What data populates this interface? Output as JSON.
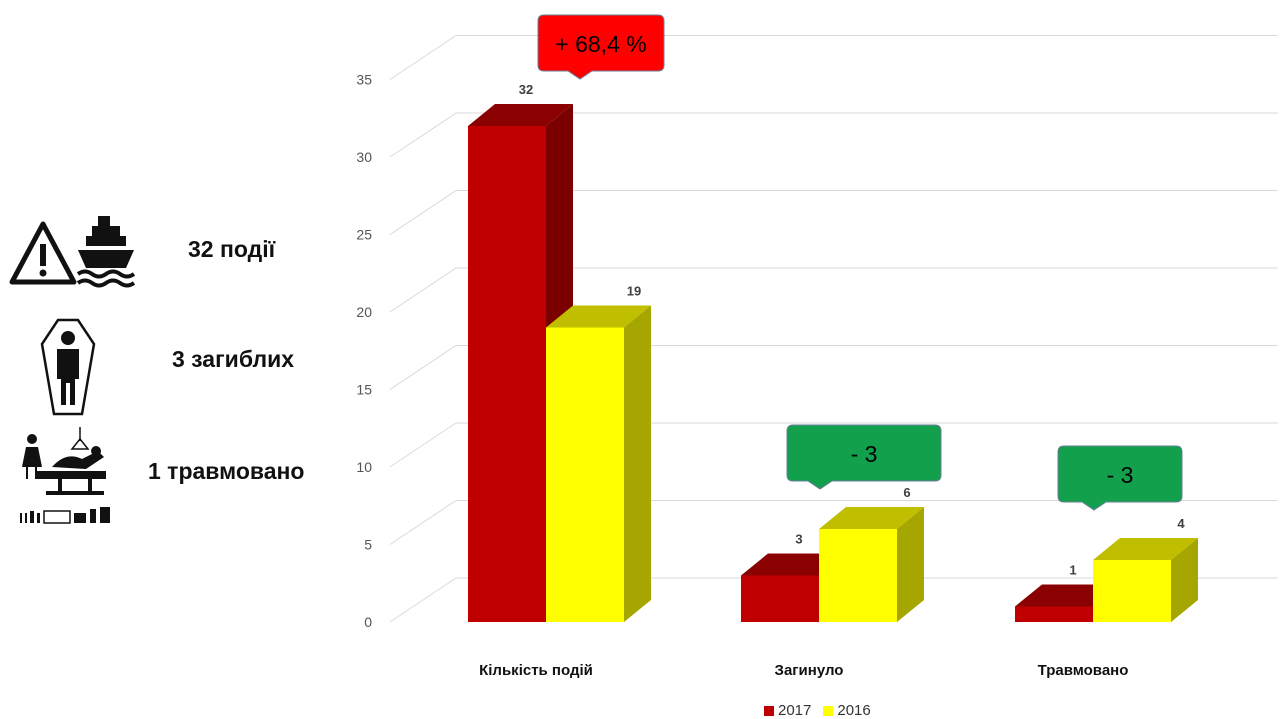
{
  "stats": [
    {
      "label": "32 події",
      "icon": "warning-ship-icon"
    },
    {
      "label": "3 загиблих",
      "icon": "coffin-person-icon"
    },
    {
      "label": "1 травмовано",
      "icon": "hospital-bed-icon"
    }
  ],
  "chart_data": {
    "type": "bar",
    "categories": [
      "Кількість подій",
      "Загинуло",
      "Травмовано"
    ],
    "series": [
      {
        "name": "2017",
        "color": "#c00000",
        "values": [
          32,
          3,
          1
        ]
      },
      {
        "name": "2016",
        "color": "#ffff00",
        "values": [
          19,
          6,
          4
        ]
      }
    ],
    "ylim": [
      0,
      35
    ],
    "yticks": [
      "0",
      "5",
      "10",
      "15",
      "20",
      "25",
      "30",
      "35"
    ],
    "grid": true,
    "legend_position": "bottom",
    "annotations": [
      {
        "category_index": 0,
        "text": "+ 68,4 %",
        "color": "#ff0000"
      },
      {
        "category_index": 1,
        "text": "- 3",
        "color": "#13a04d"
      },
      {
        "category_index": 2,
        "text": "- 3",
        "color": "#13a04d"
      }
    ]
  }
}
